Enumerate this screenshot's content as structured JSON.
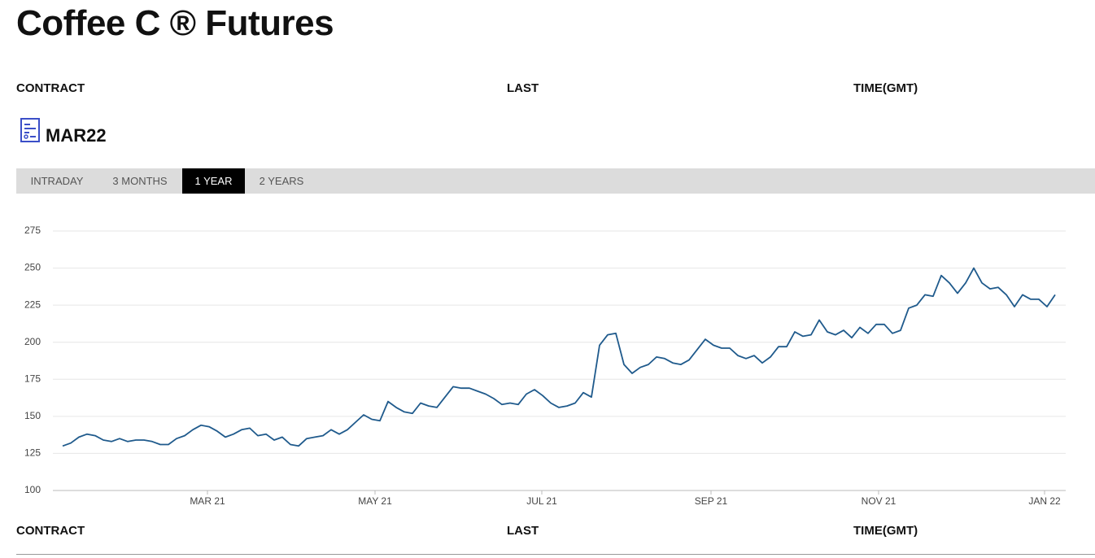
{
  "header": {
    "title": "Coffee C ® Futures"
  },
  "table_header": [
    "CONTRACT",
    "LAST",
    "TIME(GMT)"
  ],
  "contract": "MAR22",
  "tabs": [
    {
      "label": "INTRADAY",
      "selected": false
    },
    {
      "label": "3 MONTHS",
      "selected": false
    },
    {
      "label": "1 YEAR",
      "selected": true
    },
    {
      "label": "2 YEARS",
      "selected": false
    }
  ],
  "chart_data": {
    "type": "line",
    "color": "#1f5a8c",
    "grid": true,
    "values": [
      130,
      132,
      136,
      138,
      137,
      134,
      133,
      135,
      133,
      134,
      134,
      133,
      131,
      131,
      135,
      137,
      141,
      144,
      143,
      140,
      136,
      138,
      141,
      142,
      137,
      138,
      134,
      136,
      131,
      130,
      135,
      136,
      137,
      141,
      138,
      141,
      146,
      151,
      148,
      147,
      160,
      156,
      153,
      152,
      159,
      157,
      156,
      163,
      170,
      169,
      169,
      167,
      165,
      162,
      158,
      159,
      158,
      165,
      168,
      164,
      159,
      156,
      157,
      159,
      166,
      163,
      198,
      205,
      206,
      185,
      179,
      183,
      185,
      190,
      189,
      186,
      185,
      188,
      195,
      202,
      198,
      196,
      196,
      191,
      189,
      191,
      186,
      190,
      197,
      197,
      207,
      204,
      205,
      215,
      207,
      205,
      208,
      203,
      210,
      206,
      212,
      212,
      206,
      208,
      223,
      225,
      232,
      231,
      245,
      240,
      233,
      240,
      250,
      240,
      236,
      237,
      232,
      224,
      232,
      229,
      229,
      224,
      232
    ],
    "xlim": [
      -1.2,
      123.3
    ],
    "xticks": [
      {
        "value": 17.8,
        "label": "MAR 21"
      },
      {
        "value": 38.4,
        "label": "MAY 21"
      },
      {
        "value": 58.9,
        "label": "JUL 21"
      },
      {
        "value": 79.7,
        "label": "SEP 21"
      },
      {
        "value": 100.3,
        "label": "NOV 21"
      },
      {
        "value": 120.7,
        "label": "JAN 22"
      }
    ],
    "ylim": [
      100,
      275
    ],
    "yticks": [
      100,
      125,
      150,
      175,
      200,
      225,
      250,
      275
    ]
  },
  "footer_header": [
    "CONTRACT",
    "LAST",
    "TIME(GMT)"
  ]
}
